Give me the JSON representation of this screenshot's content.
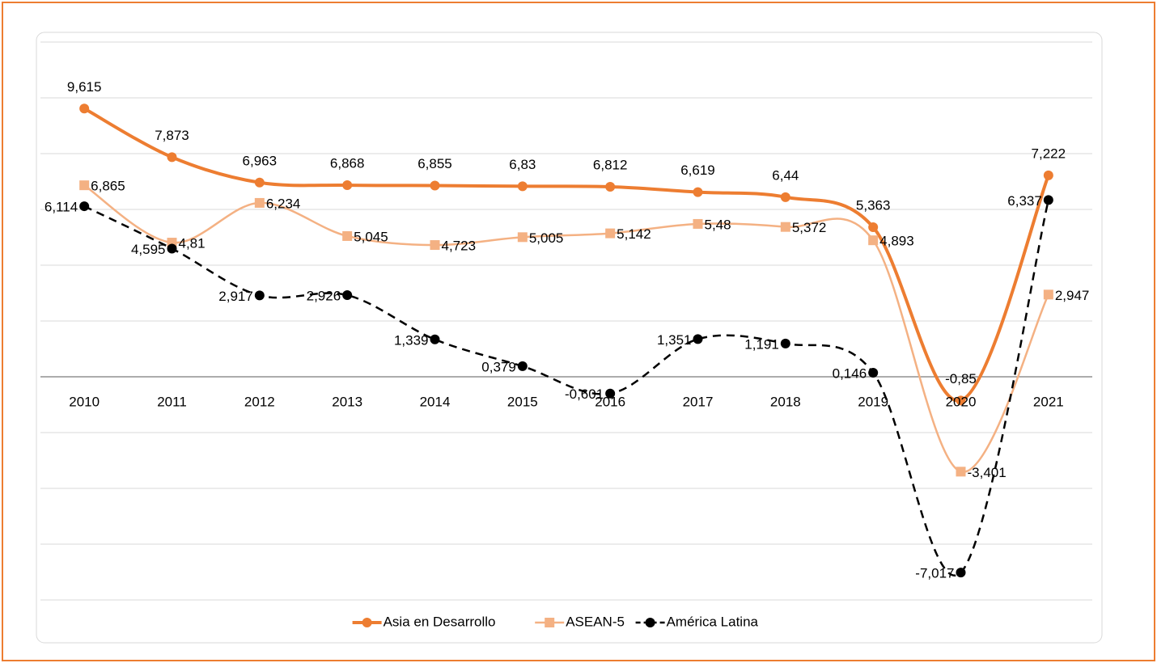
{
  "chart_data": {
    "type": "line",
    "categories": [
      "2010",
      "2011",
      "2012",
      "2013",
      "2014",
      "2015",
      "2016",
      "2017",
      "2018",
      "2019",
      "2020",
      "2021"
    ],
    "series": [
      {
        "name": "Asia en Desarrollo",
        "color": "#ed7d31",
        "marker": "circle",
        "dashed": false,
        "values": [
          9.615,
          7.873,
          6.963,
          6.868,
          6.855,
          6.83,
          6.812,
          6.619,
          6.44,
          5.363,
          -0.85,
          7.222
        ],
        "value_labels": [
          "9,615",
          "7,873",
          "6,963",
          "6,868",
          "6,855",
          "6,83",
          "6,812",
          "6,619",
          "6,44",
          "5,363",
          "-0,85",
          "7,222"
        ]
      },
      {
        "name": "ASEAN-5",
        "color": "#f4b183",
        "marker": "square",
        "dashed": false,
        "values": [
          6.865,
          4.81,
          6.234,
          5.045,
          4.723,
          5.005,
          5.142,
          5.48,
          5.372,
          4.893,
          -3.401,
          2.947
        ],
        "value_labels": [
          "6,865",
          "4,81",
          "6,234",
          "5,045",
          "4,723",
          "5,005",
          "5,142",
          "5,48",
          "5,372",
          "4,893",
          "-3,401",
          "2,947"
        ]
      },
      {
        "name": "América Latina",
        "color": "#000000",
        "marker": "circle",
        "dashed": true,
        "values": [
          6.114,
          4.595,
          2.917,
          2.926,
          1.339,
          0.379,
          -0.601,
          1.351,
          1.191,
          0.146,
          -7.017,
          6.337
        ],
        "value_labels": [
          "6,114",
          "4,595",
          "2,917",
          "2,926",
          "1,339",
          "0,379",
          "-0,601",
          "1,351",
          "1,191",
          "0,146",
          "-7,017",
          "6,337"
        ]
      }
    ],
    "ylim": [
      -8,
      12
    ],
    "yticks": [
      -8,
      -6,
      -4,
      -2,
      0,
      2,
      4,
      6,
      8,
      10,
      12
    ],
    "grid": true,
    "legend": "bottom"
  }
}
